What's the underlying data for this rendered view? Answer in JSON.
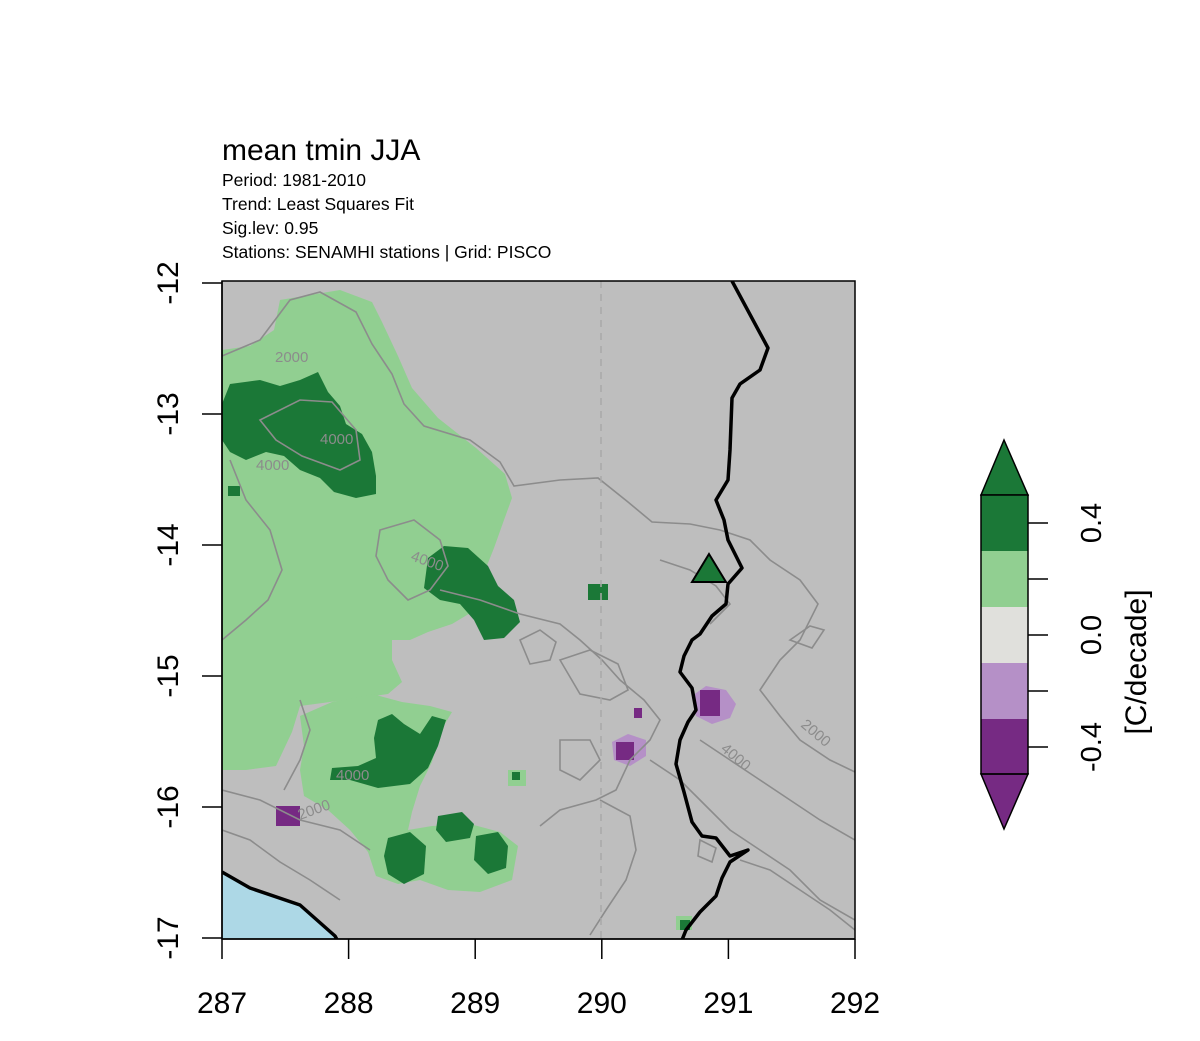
{
  "header": {
    "title": "mean tmin JJA",
    "period": "Period: 1981-2010",
    "trend": "Trend:  Least Squares Fit",
    "siglev": "Sig.lev: 0.95",
    "stations": "Stations: SENAMHI stations | Grid: PISCO"
  },
  "map": {
    "x_ticks": [
      "287",
      "288",
      "289",
      "290",
      "291",
      "292"
    ],
    "y_ticks": [
      "-12",
      "-13",
      "-14",
      "-15",
      "-16",
      "-17"
    ],
    "xlim": [
      287,
      292
    ],
    "ylim": [
      -17,
      -12
    ],
    "background_color": "#bebebe",
    "ocean_color": "#add8e6",
    "contour_color": "#8c8c8c",
    "contour_labels": [
      "2000",
      "4000",
      "4000",
      "4000",
      "2000",
      "4000",
      "4000",
      "2000"
    ],
    "dashed_meridian": 290,
    "station_marker": {
      "lon": 290.85,
      "lat": -14.2,
      "shape": "triangle",
      "color": "#1b7837"
    }
  },
  "legend": {
    "unit_label": "[C/decade]",
    "tick_labels": [
      "0.4",
      "0.0",
      "-0.4"
    ],
    "colors": {
      "strong_positive": "#1b7837",
      "positive": "#91cf91",
      "neutral": "#e0e0dc",
      "negative": "#b590c7",
      "strong_negative": "#762a83"
    }
  }
}
